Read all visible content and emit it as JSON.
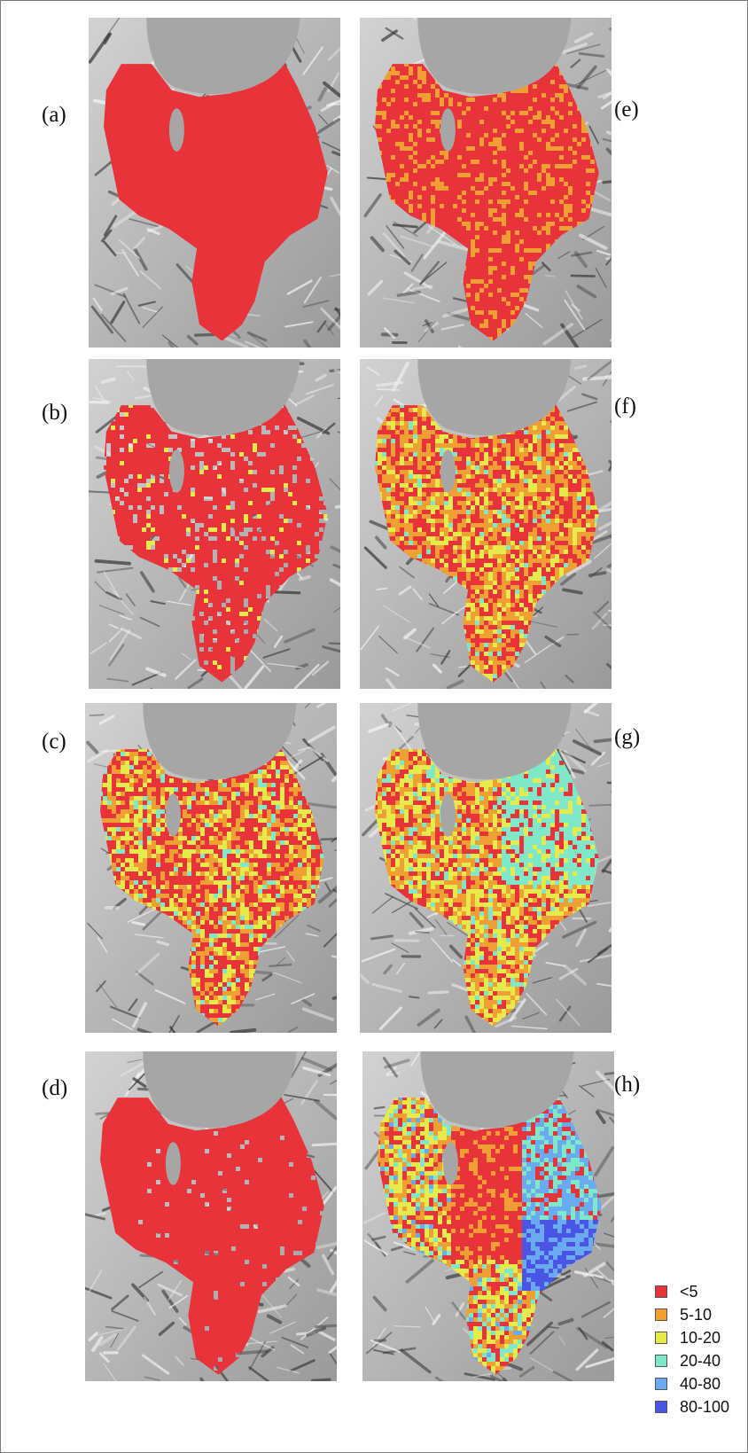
{
  "panels": [
    {
      "label": "(a)",
      "scheme": "a"
    },
    {
      "label": "(b)",
      "scheme": "b"
    },
    {
      "label": "(c)",
      "scheme": "c"
    },
    {
      "label": "(d)",
      "scheme": "d"
    },
    {
      "label": "(e)",
      "scheme": "e"
    },
    {
      "label": "(f)",
      "scheme": "f"
    },
    {
      "label": "(g)",
      "scheme": "g"
    },
    {
      "label": "(h)",
      "scheme": "h"
    }
  ],
  "legend": {
    "items": [
      {
        "label": "<5",
        "color": "#e8333a"
      },
      {
        "label": "5-10",
        "color": "#f0a032"
      },
      {
        "label": "10-20",
        "color": "#e6ea4a"
      },
      {
        "label": "20-40",
        "color": "#7fe8c8"
      },
      {
        "label": "40-80",
        "color": "#6aaaf0"
      },
      {
        "label": "80-100",
        "color": "#4a55e6"
      }
    ]
  },
  "colors": {
    "lake": "#a6a6a6",
    "terrain_light": "#d2d2d2",
    "terrain_dark": "#3a3a3a",
    "frame": "#7a7a7a"
  }
}
